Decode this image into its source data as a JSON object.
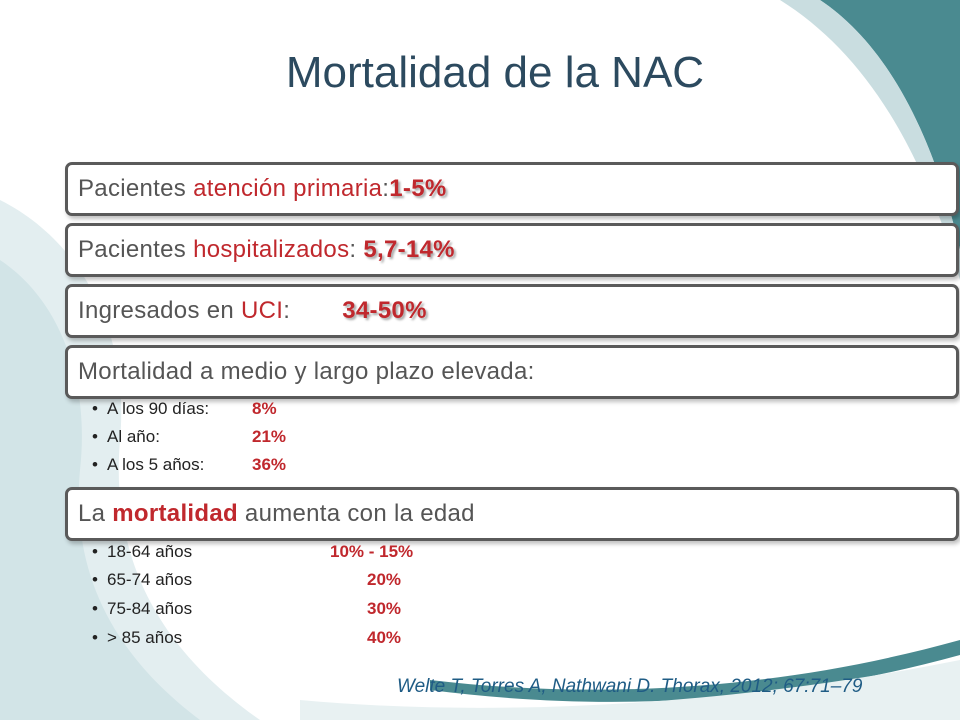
{
  "title": "Mortalidad de la NAC",
  "boxes": [
    {
      "parts": [
        "Pacientes ",
        "atención primaria",
        ":",
        "1-5%"
      ]
    },
    {
      "parts": [
        "Pacientes ",
        "hospitalizados",
        ": ",
        "5,7-14%"
      ]
    },
    {
      "parts": [
        "Ingresados en ",
        "UCI",
        ":",
        "34-50%"
      ]
    },
    {
      "parts": [
        "Mortalidad a medio y largo plazo elevada:"
      ],
      "bullets": [
        [
          "A los 90 días:",
          "8%"
        ],
        [
          "Al año:",
          "21%"
        ],
        [
          "A los 5 años:",
          "36%"
        ]
      ]
    },
    {
      "parts": [
        "La ",
        "mortalidad",
        " aumenta con la edad"
      ],
      "bullets": [
        [
          "18-64 años",
          "10% - 15%"
        ],
        [
          "65-74 años",
          "20%"
        ],
        [
          "75-84 años",
          "30%"
        ],
        [
          "> 85 años",
          "40%"
        ]
      ]
    }
  ],
  "citation": "Welte T, Torres A, Nathwani D. Thorax, 2012; 67:71–79"
}
